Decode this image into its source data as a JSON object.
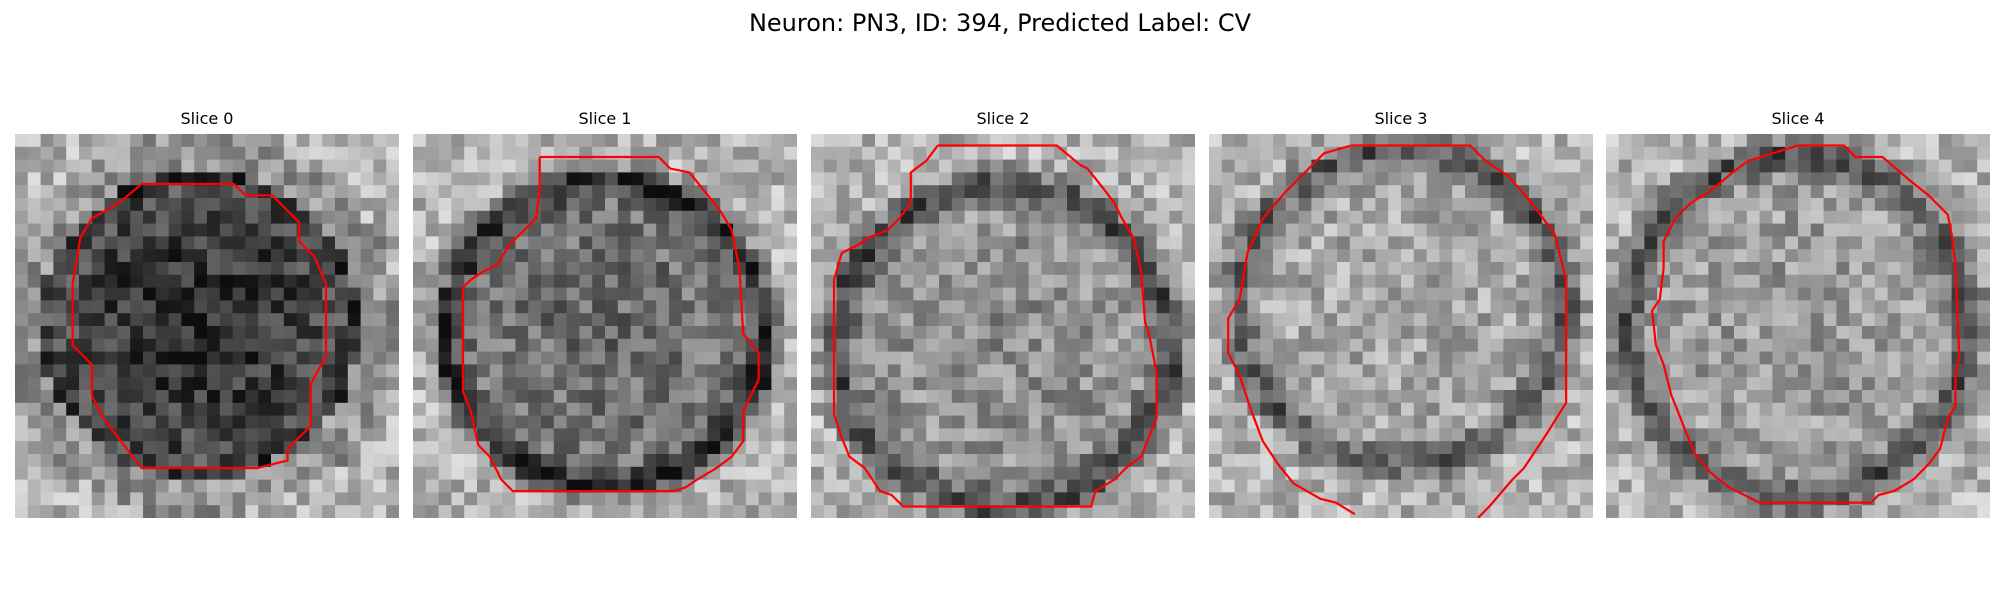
{
  "figure": {
    "title": "Neuron: PN3, ID: 394, Predicted Label: CV"
  },
  "panels": [
    {
      "title": "Slice 0",
      "darkness": 0.55,
      "center": [
        0.48,
        0.5
      ],
      "rx": 0.42,
      "ry": 0.4,
      "ring": false,
      "contour": [
        [
          0.33,
          0.13
        ],
        [
          0.57,
          0.13
        ],
        [
          0.6,
          0.16
        ],
        [
          0.67,
          0.16
        ],
        [
          0.74,
          0.23
        ],
        [
          0.74,
          0.28
        ],
        [
          0.78,
          0.32
        ],
        [
          0.81,
          0.39
        ],
        [
          0.81,
          0.58
        ],
        [
          0.77,
          0.65
        ],
        [
          0.77,
          0.76
        ],
        [
          0.71,
          0.82
        ],
        [
          0.71,
          0.85
        ],
        [
          0.63,
          0.87
        ],
        [
          0.33,
          0.87
        ],
        [
          0.23,
          0.74
        ],
        [
          0.2,
          0.68
        ],
        [
          0.2,
          0.6
        ],
        [
          0.15,
          0.55
        ],
        [
          0.15,
          0.39
        ],
        [
          0.17,
          0.27
        ],
        [
          0.2,
          0.22
        ],
        [
          0.27,
          0.18
        ],
        [
          0.33,
          0.13
        ]
      ]
    },
    {
      "title": "Slice 1",
      "darkness": 0.3,
      "center": [
        0.5,
        0.52
      ],
      "rx": 0.44,
      "ry": 0.42,
      "ring": true,
      "contour": [
        [
          0.33,
          0.06
        ],
        [
          0.64,
          0.06
        ],
        [
          0.67,
          0.09
        ],
        [
          0.72,
          0.1
        ],
        [
          0.8,
          0.2
        ],
        [
          0.83,
          0.25
        ],
        [
          0.85,
          0.35
        ],
        [
          0.86,
          0.52
        ],
        [
          0.9,
          0.57
        ],
        [
          0.9,
          0.64
        ],
        [
          0.86,
          0.72
        ],
        [
          0.86,
          0.8
        ],
        [
          0.83,
          0.84
        ],
        [
          0.79,
          0.87
        ],
        [
          0.74,
          0.9
        ],
        [
          0.71,
          0.92
        ],
        [
          0.68,
          0.93
        ],
        [
          0.26,
          0.93
        ],
        [
          0.23,
          0.9
        ],
        [
          0.2,
          0.84
        ],
        [
          0.17,
          0.81
        ],
        [
          0.15,
          0.72
        ],
        [
          0.13,
          0.67
        ],
        [
          0.13,
          0.4
        ],
        [
          0.15,
          0.38
        ],
        [
          0.18,
          0.36
        ],
        [
          0.22,
          0.34
        ],
        [
          0.25,
          0.29
        ],
        [
          0.29,
          0.25
        ],
        [
          0.32,
          0.22
        ],
        [
          0.33,
          0.15
        ],
        [
          0.33,
          0.06
        ]
      ]
    },
    {
      "title": "Slice 2",
      "darkness": 0.15,
      "center": [
        0.5,
        0.55
      ],
      "rx": 0.46,
      "ry": 0.44,
      "ring": true,
      "contour": [
        [
          0.33,
          0.03
        ],
        [
          0.64,
          0.03
        ],
        [
          0.7,
          0.08
        ],
        [
          0.72,
          0.09
        ],
        [
          0.76,
          0.14
        ],
        [
          0.79,
          0.18
        ],
        [
          0.81,
          0.22
        ],
        [
          0.84,
          0.27
        ],
        [
          0.86,
          0.36
        ],
        [
          0.87,
          0.49
        ],
        [
          0.88,
          0.52
        ],
        [
          0.9,
          0.62
        ],
        [
          0.9,
          0.74
        ],
        [
          0.88,
          0.79
        ],
        [
          0.86,
          0.84
        ],
        [
          0.82,
          0.87
        ],
        [
          0.79,
          0.9
        ],
        [
          0.74,
          0.93
        ],
        [
          0.73,
          0.97
        ],
        [
          0.24,
          0.97
        ],
        [
          0.21,
          0.94
        ],
        [
          0.18,
          0.93
        ],
        [
          0.14,
          0.87
        ],
        [
          0.1,
          0.84
        ],
        [
          0.08,
          0.79
        ],
        [
          0.06,
          0.73
        ],
        [
          0.06,
          0.38
        ],
        [
          0.08,
          0.31
        ],
        [
          0.12,
          0.29
        ],
        [
          0.15,
          0.27
        ],
        [
          0.2,
          0.25
        ],
        [
          0.23,
          0.22
        ],
        [
          0.26,
          0.18
        ],
        [
          0.26,
          0.1
        ],
        [
          0.3,
          0.07
        ],
        [
          0.33,
          0.03
        ]
      ]
    },
    {
      "title": "Slice 3",
      "darkness": 0.05,
      "center": [
        0.5,
        0.45
      ],
      "rx": 0.45,
      "ry": 0.43,
      "ring": true,
      "contour": [
        [
          0.37,
          0.03
        ],
        [
          0.68,
          0.03
        ],
        [
          0.72,
          0.07
        ],
        [
          0.78,
          0.11
        ],
        [
          0.84,
          0.18
        ],
        [
          0.9,
          0.26
        ],
        [
          0.93,
          0.38
        ],
        [
          0.93,
          0.7
        ],
        [
          0.88,
          0.78
        ],
        [
          0.84,
          0.84
        ],
        [
          0.82,
          0.87
        ],
        [
          0.79,
          0.9
        ],
        [
          0.73,
          0.97
        ],
        [
          0.7,
          1.0
        ]
      ],
      "contour2": [
        [
          0.37,
          0.03
        ],
        [
          0.3,
          0.05
        ],
        [
          0.25,
          0.1
        ],
        [
          0.2,
          0.15
        ],
        [
          0.14,
          0.22
        ],
        [
          0.1,
          0.31
        ],
        [
          0.08,
          0.43
        ],
        [
          0.05,
          0.48
        ],
        [
          0.05,
          0.57
        ],
        [
          0.08,
          0.63
        ],
        [
          0.11,
          0.72
        ],
        [
          0.14,
          0.8
        ],
        [
          0.18,
          0.86
        ],
        [
          0.22,
          0.91
        ],
        [
          0.29,
          0.95
        ],
        [
          0.33,
          0.96
        ],
        [
          0.38,
          0.99
        ]
      ]
    },
    {
      "title": "Slice 4",
      "darkness": 0.1,
      "center": [
        0.5,
        0.5
      ],
      "rx": 0.47,
      "ry": 0.47,
      "ring": true,
      "contour": [
        [
          0.5,
          0.03
        ],
        [
          0.62,
          0.03
        ],
        [
          0.65,
          0.06
        ],
        [
          0.72,
          0.06
        ],
        [
          0.79,
          0.12
        ],
        [
          0.84,
          0.16
        ],
        [
          0.89,
          0.21
        ],
        [
          0.9,
          0.26
        ],
        [
          0.91,
          0.34
        ],
        [
          0.92,
          0.58
        ],
        [
          0.91,
          0.63
        ],
        [
          0.91,
          0.71
        ],
        [
          0.89,
          0.74
        ],
        [
          0.87,
          0.82
        ],
        [
          0.84,
          0.86
        ],
        [
          0.8,
          0.9
        ],
        [
          0.75,
          0.93
        ],
        [
          0.71,
          0.94
        ],
        [
          0.69,
          0.96
        ],
        [
          0.4,
          0.96
        ],
        [
          0.32,
          0.92
        ],
        [
          0.27,
          0.88
        ],
        [
          0.23,
          0.83
        ],
        [
          0.21,
          0.78
        ],
        [
          0.19,
          0.73
        ],
        [
          0.17,
          0.68
        ],
        [
          0.15,
          0.6
        ],
        [
          0.13,
          0.55
        ],
        [
          0.12,
          0.46
        ],
        [
          0.14,
          0.43
        ],
        [
          0.15,
          0.35
        ],
        [
          0.15,
          0.28
        ],
        [
          0.18,
          0.22
        ],
        [
          0.22,
          0.18
        ],
        [
          0.27,
          0.15
        ],
        [
          0.33,
          0.1
        ],
        [
          0.37,
          0.07
        ],
        [
          0.5,
          0.03
        ]
      ]
    }
  ],
  "colors": {
    "contour": "#ff0000"
  }
}
